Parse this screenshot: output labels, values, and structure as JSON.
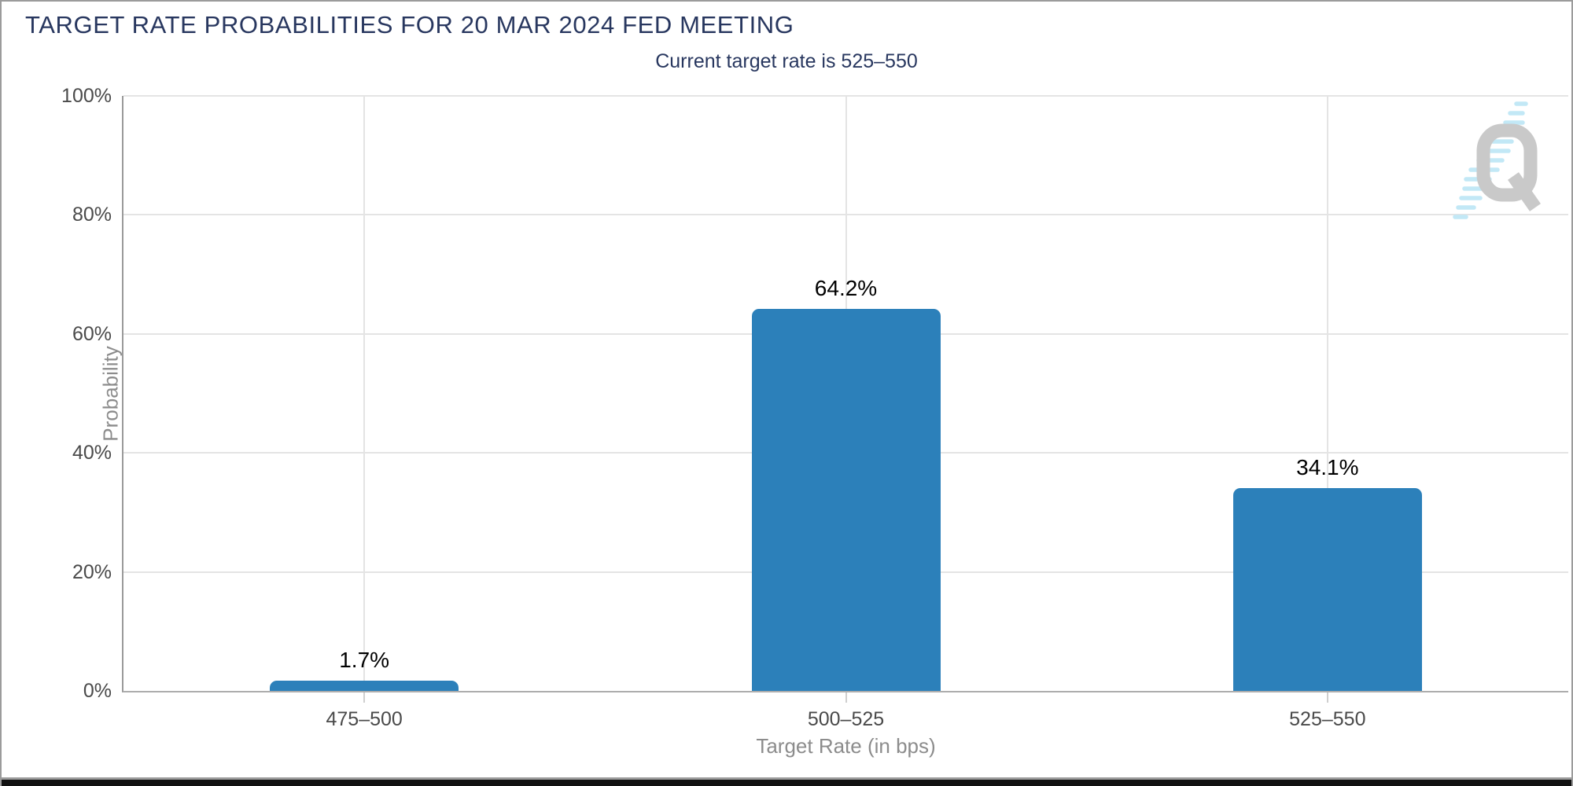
{
  "window": {
    "frame_border_color": "#9b9b9b",
    "bottom_strip_color": "#111111"
  },
  "header": {
    "title": "TARGET RATE PROBABILITIES FOR 20 MAR 2024 FED MEETING",
    "subtitle": "Current target rate is 525–550",
    "title_color": "#28375f"
  },
  "watermark": {
    "name": "quikstrike-q-logo",
    "q_color": "#c9c9c9",
    "swoosh_color": "#c2e8f6"
  },
  "chart_data": {
    "type": "bar",
    "title": "TARGET RATE PROBABILITIES FOR 20 MAR 2024 FED MEETING",
    "subtitle": "Current target rate is 525–550",
    "categories": [
      "475–500",
      "500–525",
      "525–550"
    ],
    "values": [
      1.7,
      64.2,
      34.1
    ],
    "value_labels": [
      "1.7%",
      "64.2%",
      "34.1%"
    ],
    "xlabel": "Target Rate (in bps)",
    "ylabel": "Probability",
    "ylim": [
      0,
      100
    ],
    "yticks": [
      "0%",
      "20%",
      "40%",
      "60%",
      "80%",
      "100%"
    ],
    "ytick_values": [
      0,
      20,
      40,
      60,
      80,
      100
    ],
    "grid": true,
    "legend": "none",
    "bar_color": "#2c80ba",
    "bar_label_color": "#000000",
    "tick_label_color": "#4a4a4a",
    "axis_title_color": "#8c8c8c",
    "gridline_color": "#e4e4e4",
    "axis_line_color": "#9a9a9a"
  }
}
